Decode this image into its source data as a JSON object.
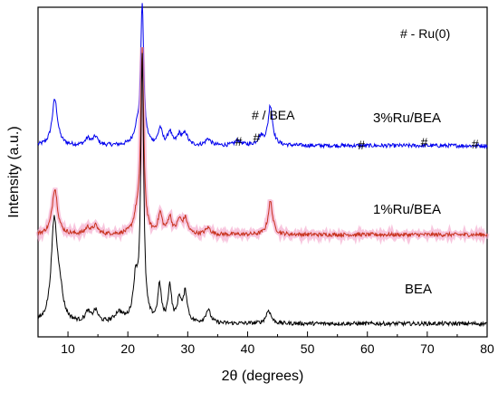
{
  "chart_data": {
    "type": "line",
    "title": "",
    "xlabel": "2θ (degrees)",
    "ylabel": "Intensity (a.u.)",
    "xlim": [
      5,
      80
    ],
    "xticks": [
      10,
      20,
      30,
      40,
      50,
      60,
      70,
      80
    ],
    "yticks_shown": false,
    "grid": false,
    "legend": "none",
    "y_units": "arbitrary (stacked patterns, vertical offset)",
    "series": [
      {
        "name": "3%Ru/BEA",
        "color": "#0000ee",
        "baseline": 0.58,
        "peaks": [
          {
            "x": 7.8,
            "h": 0.14,
            "w": 0.55
          },
          {
            "x": 13.3,
            "h": 0.02,
            "w": 0.5
          },
          {
            "x": 14.6,
            "h": 0.025,
            "w": 0.5
          },
          {
            "x": 21.5,
            "h": 0.04,
            "w": 0.6
          },
          {
            "x": 22.4,
            "h": 0.42,
            "w": 0.3
          },
          {
            "x": 25.4,
            "h": 0.05,
            "w": 0.4
          },
          {
            "x": 27.0,
            "h": 0.04,
            "w": 0.4
          },
          {
            "x": 28.6,
            "h": 0.03,
            "w": 0.45
          },
          {
            "x": 29.6,
            "h": 0.035,
            "w": 0.45
          },
          {
            "x": 33.4,
            "h": 0.02,
            "w": 0.5
          },
          {
            "x": 38.4,
            "h": 0.015,
            "w": 0.6
          },
          {
            "x": 42.2,
            "h": 0.025,
            "w": 0.6
          },
          {
            "x": 43.8,
            "h": 0.12,
            "w": 0.45
          }
        ]
      },
      {
        "name": "1%Ru/BEA",
        "color": "#c8321e",
        "baseline": 0.31,
        "peaks": [
          {
            "x": 7.8,
            "h": 0.14,
            "w": 0.55
          },
          {
            "x": 13.3,
            "h": 0.02,
            "w": 0.5
          },
          {
            "x": 14.6,
            "h": 0.025,
            "w": 0.5
          },
          {
            "x": 21.5,
            "h": 0.05,
            "w": 0.6
          },
          {
            "x": 22.4,
            "h": 0.55,
            "w": 0.3
          },
          {
            "x": 25.4,
            "h": 0.06,
            "w": 0.4
          },
          {
            "x": 27.0,
            "h": 0.05,
            "w": 0.4
          },
          {
            "x": 28.6,
            "h": 0.04,
            "w": 0.45
          },
          {
            "x": 29.6,
            "h": 0.045,
            "w": 0.45
          },
          {
            "x": 33.4,
            "h": 0.02,
            "w": 0.5
          },
          {
            "x": 43.8,
            "h": 0.1,
            "w": 0.45
          }
        ]
      },
      {
        "name": "BEA",
        "color": "#000000",
        "baseline": 0.04,
        "peaks": [
          {
            "x": 7.7,
            "h": 0.3,
            "w": 0.6
          },
          {
            "x": 8.6,
            "h": 0.08,
            "w": 0.6
          },
          {
            "x": 13.3,
            "h": 0.03,
            "w": 0.5
          },
          {
            "x": 14.6,
            "h": 0.035,
            "w": 0.5
          },
          {
            "x": 18.5,
            "h": 0.03,
            "w": 0.8
          },
          {
            "x": 21.3,
            "h": 0.12,
            "w": 0.5
          },
          {
            "x": 22.4,
            "h": 0.8,
            "w": 0.28
          },
          {
            "x": 25.3,
            "h": 0.11,
            "w": 0.35
          },
          {
            "x": 27.0,
            "h": 0.11,
            "w": 0.35
          },
          {
            "x": 28.6,
            "h": 0.07,
            "w": 0.4
          },
          {
            "x": 29.6,
            "h": 0.09,
            "w": 0.4
          },
          {
            "x": 33.4,
            "h": 0.04,
            "w": 0.5
          },
          {
            "x": 43.5,
            "h": 0.04,
            "w": 0.5
          }
        ]
      }
    ],
    "annotations": {
      "legend_note": "# - Ru(0)",
      "bea_peak_note": "# / BEA",
      "hash": "#",
      "hash_positions": [
        38.5,
        41.5,
        59,
        69.5,
        78
      ]
    }
  }
}
